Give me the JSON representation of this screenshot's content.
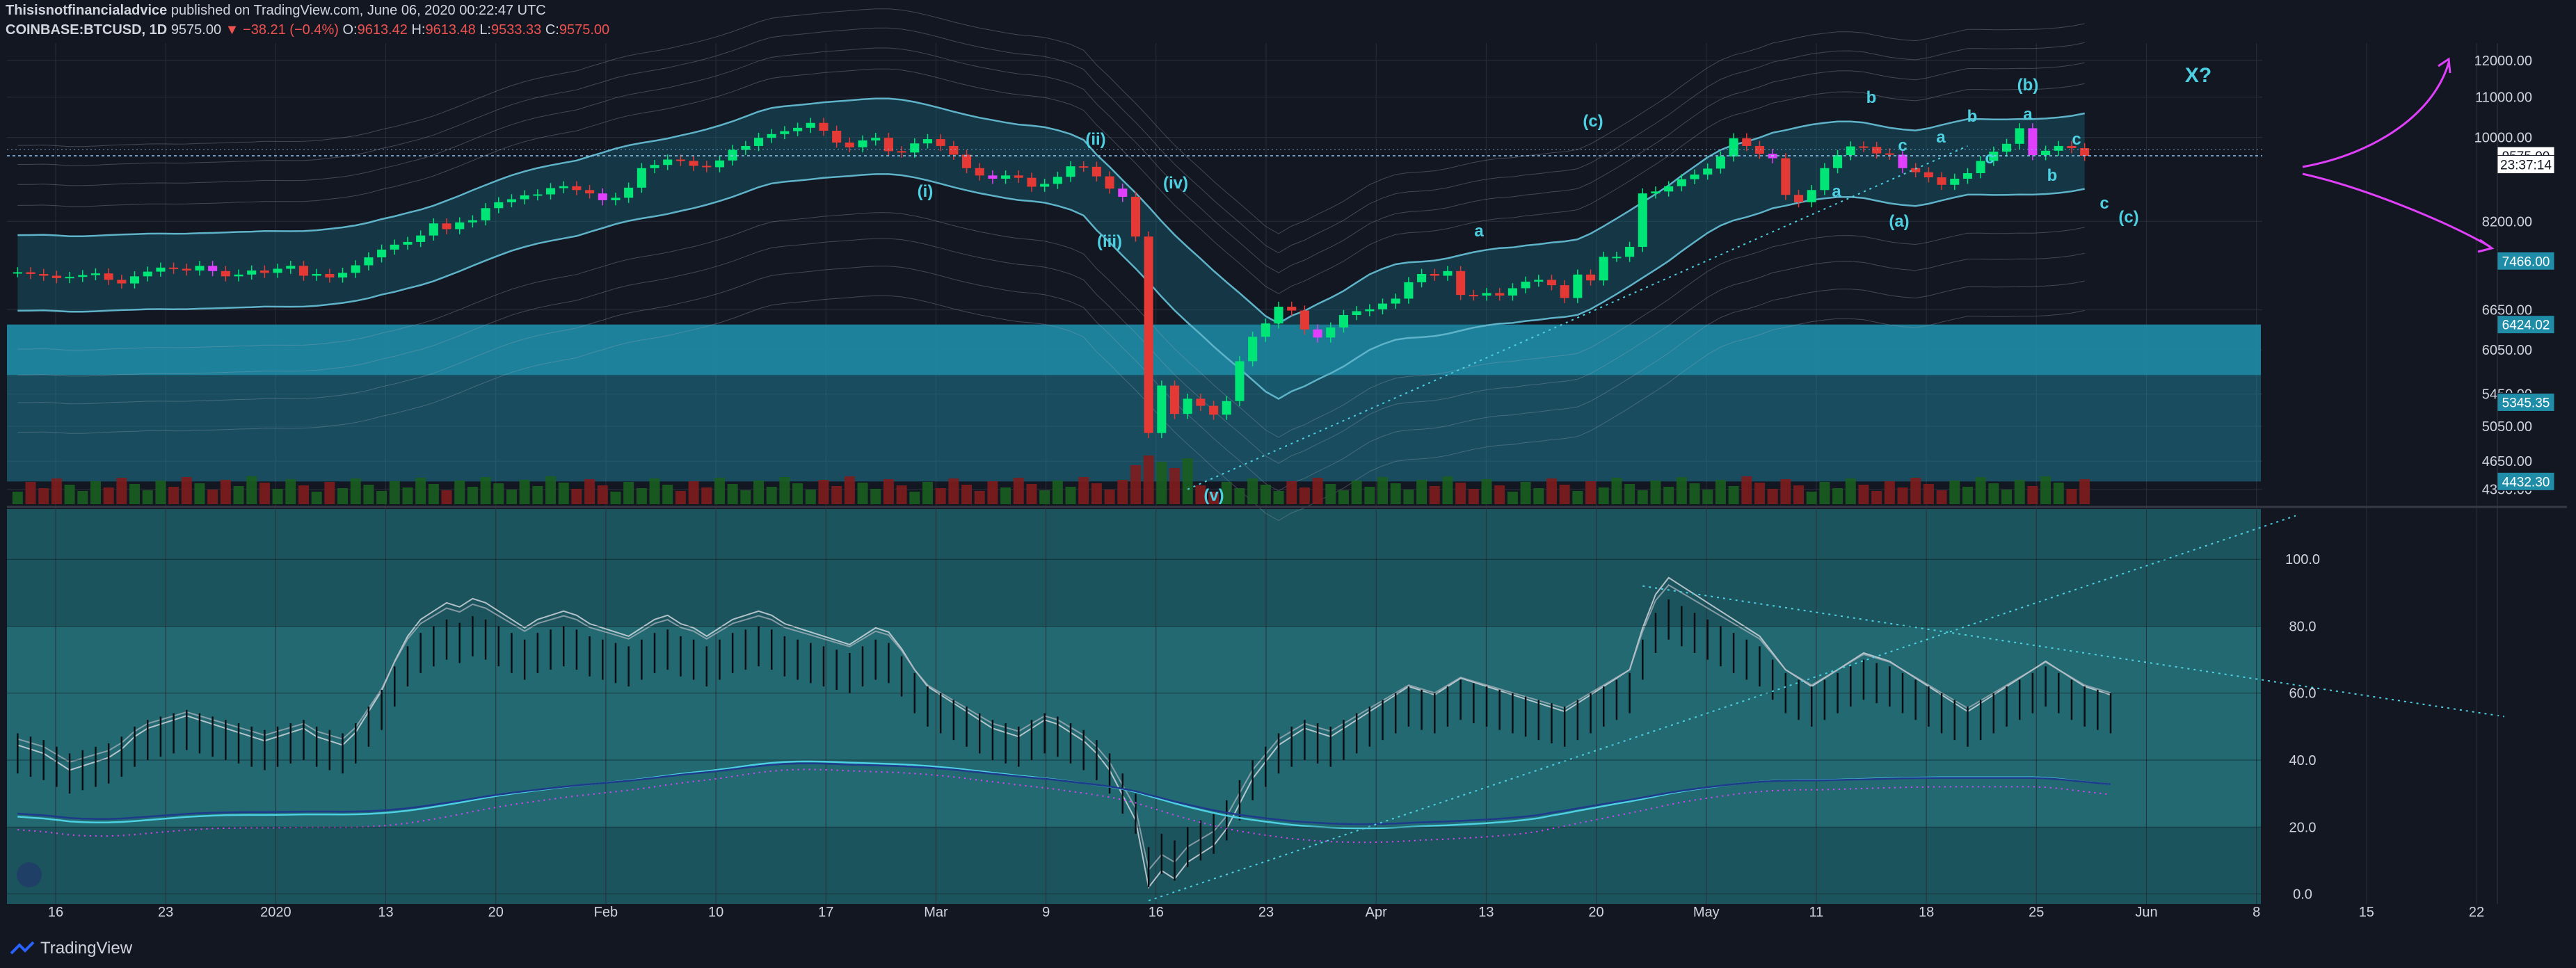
{
  "header": {
    "author": "Thisisnotfinancialadvice",
    "published": "published on TradingView.com, June 06, 2020 00:22:47 UTC",
    "symbol": "COINBASE:BTCUSD, 1D",
    "last": "9575.00",
    "change": "▼ −38.21 (−0.4%)",
    "o_label": "O:",
    "o_value": "9613.42",
    "h_label": "H:",
    "h_value": "9613.48",
    "l_label": "L:",
    "l_value": "9533.33",
    "c_label": "C:",
    "c_value": "9575.00"
  },
  "footer": {
    "brand": "TradingView"
  },
  "colors": {
    "background": "#131722",
    "up": "#00e676",
    "down": "#e53935",
    "magenta": "#e040fb",
    "band": "#5fb3c9",
    "teal_zone": "#1f8da8",
    "osc_panel": "#1f5f68",
    "annotation": "#4dd0e1",
    "arrow": "#e040fb"
  },
  "chart_data": [
    {
      "type": "candlestick",
      "panel": "price",
      "scale": "log",
      "ylim": [
        4200,
        12500
      ],
      "y_ticks": [
        {
          "label": "12000.00",
          "value": 12000
        },
        {
          "label": "11000.00",
          "value": 11000
        },
        {
          "label": "10000.00",
          "value": 10000
        },
        {
          "label": "8200.00",
          "value": 8200
        },
        {
          "label": "6650.00",
          "value": 6650
        },
        {
          "label": "6050.00",
          "value": 6050
        },
        {
          "label": "5450.00",
          "value": 5450
        },
        {
          "label": "5050.00",
          "value": 5050
        },
        {
          "label": "4650.00",
          "value": 4650
        },
        {
          "label": "4350.00",
          "value": 4350
        }
      ],
      "price_tags": [
        {
          "label": "9575.00",
          "value": 9575,
          "kind": "last"
        },
        {
          "label": "23:37:14",
          "value": 9380,
          "kind": "countdown"
        },
        {
          "label": "7466.00",
          "value": 7466,
          "kind": "level"
        },
        {
          "label": "6424.02",
          "value": 6424,
          "kind": "zone"
        },
        {
          "label": "5345.35",
          "value": 5345,
          "kind": "zone"
        },
        {
          "label": "4432.30",
          "value": 4432,
          "kind": "zone"
        }
      ],
      "x_ticks": [
        "16",
        "23",
        "2020",
        "13",
        "20",
        "Feb",
        "10",
        "17",
        "Mar",
        "9",
        "16",
        "23",
        "Apr",
        "13",
        "20",
        "May",
        "11",
        "18",
        "25",
        "Jun",
        "8",
        "15",
        "22"
      ],
      "close_series": [
        7270,
        7240,
        7210,
        7170,
        7190,
        7220,
        7250,
        7140,
        7080,
        7200,
        7280,
        7350,
        7330,
        7300,
        7380,
        7290,
        7200,
        7230,
        7300,
        7260,
        7330,
        7380,
        7210,
        7240,
        7180,
        7260,
        7390,
        7530,
        7670,
        7760,
        7810,
        7930,
        8160,
        8050,
        8180,
        8220,
        8460,
        8580,
        8640,
        8720,
        8740,
        8870,
        8910,
        8830,
        8760,
        8620,
        8670,
        8880,
        9300,
        9370,
        9490,
        9460,
        9350,
        9320,
        9470,
        9710,
        9800,
        9990,
        10080,
        10150,
        10230,
        10350,
        10160,
        9880,
        9770,
        9930,
        9990,
        9680,
        9650,
        9860,
        9960,
        9800,
        9600,
        9300,
        9140,
        9070,
        9140,
        9090,
        8900,
        8960,
        9110,
        9340,
        9330,
        9120,
        8860,
        8690,
        7910,
        4970,
        5560,
        5200,
        5390,
        5300,
        5190,
        5360,
        5890,
        6240,
        6440,
        6700,
        6640,
        6350,
        6230,
        6380,
        6570,
        6630,
        6660,
        6750,
        6830,
        7100,
        7240,
        7210,
        7290,
        6890,
        6880,
        6920,
        6880,
        7000,
        7110,
        7140,
        7050,
        6840,
        7230,
        7130,
        7540,
        7540,
        7720,
        8760,
        8800,
        8910,
        9060,
        9160,
        9290,
        9560,
        9980,
        9800,
        9620,
        9520,
        8730,
        8580,
        8830,
        9300,
        9590,
        9790,
        9780,
        9630,
        9600,
        9300,
        9210,
        9100,
        8940,
        9070,
        9190,
        9460,
        9670,
        9850,
        10220,
        9590,
        9690,
        9800,
        9750,
        9575
      ],
      "annotations": [
        {
          "label": "(i)"
        },
        {
          "label": "(ii)"
        },
        {
          "label": "(iii)"
        },
        {
          "label": "(iv)"
        },
        {
          "label": "(v)"
        },
        {
          "label": "a"
        },
        {
          "label": "b"
        },
        {
          "label": "c"
        },
        {
          "label": "a"
        },
        {
          "label": "b"
        },
        {
          "label": "c"
        },
        {
          "label": "a"
        },
        {
          "label": "b"
        },
        {
          "label": "c"
        },
        {
          "label": "a"
        },
        {
          "label": "b"
        },
        {
          "label": "c"
        },
        {
          "label": "a"
        },
        {
          "label": "b"
        },
        {
          "label": "c"
        },
        {
          "label": "(a)"
        },
        {
          "label": "(b)"
        },
        {
          "label": "(c)"
        },
        {
          "label": "X?"
        }
      ]
    },
    {
      "type": "line",
      "panel": "oscillator",
      "ylim": [
        -3,
        115
      ],
      "y_ticks": [
        {
          "label": "100.0",
          "value": 100
        },
        {
          "label": "80.0",
          "value": 80
        },
        {
          "label": "60.0",
          "value": 60
        },
        {
          "label": "40.0",
          "value": 40
        },
        {
          "label": "20.0",
          "value": 20
        },
        {
          "label": "0.0",
          "value": 0
        }
      ],
      "series": [
        {
          "values": [
            42,
            41,
            40,
            38,
            36,
            37,
            38,
            39,
            41,
            44,
            46,
            47,
            48,
            49,
            48,
            47,
            46,
            45,
            44,
            43,
            44,
            45,
            46,
            44,
            43,
            42,
            45,
            50,
            55,
            62,
            68,
            72,
            74,
            76,
            75,
            77,
            76,
            74,
            72,
            70,
            72,
            73,
            74,
            73,
            71,
            70,
            69,
            68,
            70,
            72,
            73,
            71,
            70,
            68,
            70,
            72,
            73,
            74,
            73,
            71,
            70,
            69,
            68,
            67,
            66,
            68,
            70,
            69,
            65,
            60,
            56,
            54,
            52,
            50,
            48,
            46,
            45,
            44,
            46,
            48,
            47,
            45,
            43,
            40,
            36,
            30,
            24,
            8,
            12,
            10,
            14,
            16,
            18,
            22,
            28,
            34,
            38,
            42,
            44,
            46,
            45,
            44,
            46,
            48,
            50,
            52,
            54,
            56,
            55,
            54,
            56,
            58,
            57,
            56,
            55,
            54,
            53,
            52,
            51,
            50,
            52,
            54,
            56,
            58,
            60,
            70,
            78,
            82,
            80,
            78,
            76,
            74,
            72,
            70,
            68,
            64,
            60,
            58,
            56,
            58,
            60,
            62,
            64,
            63,
            62,
            60,
            58,
            56,
            54,
            52,
            50,
            52,
            54,
            56,
            58,
            60,
            62,
            60,
            58,
            56,
            55,
            54
          ]
        }
      ]
    }
  ]
}
